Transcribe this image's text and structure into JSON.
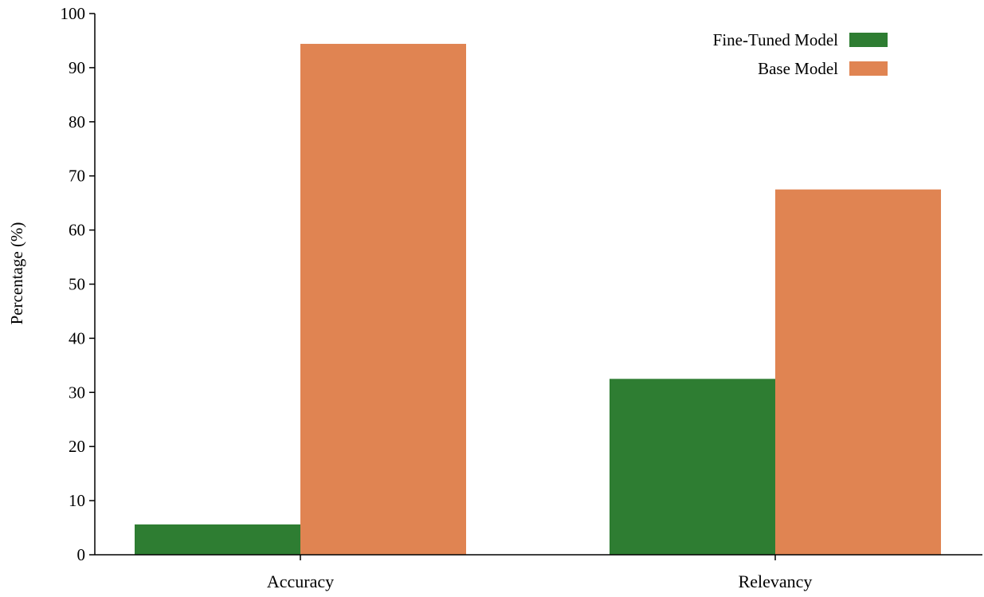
{
  "chart_data": {
    "type": "bar",
    "title": "",
    "xlabel": "",
    "ylabel": "Percentage (%)",
    "ylim": [
      0,
      100
    ],
    "yticks": [
      0,
      10,
      20,
      30,
      40,
      50,
      60,
      70,
      80,
      90,
      100
    ],
    "categories": [
      "Accuracy",
      "Relevancy"
    ],
    "series": [
      {
        "name": "Fine-Tuned Model",
        "color": "#2e7d32",
        "values": [
          5.6,
          32.5
        ]
      },
      {
        "name": "Base Model",
        "color": "#e08452",
        "values": [
          94.4,
          67.5
        ]
      }
    ],
    "grid": false,
    "legend_position": "top-right"
  }
}
